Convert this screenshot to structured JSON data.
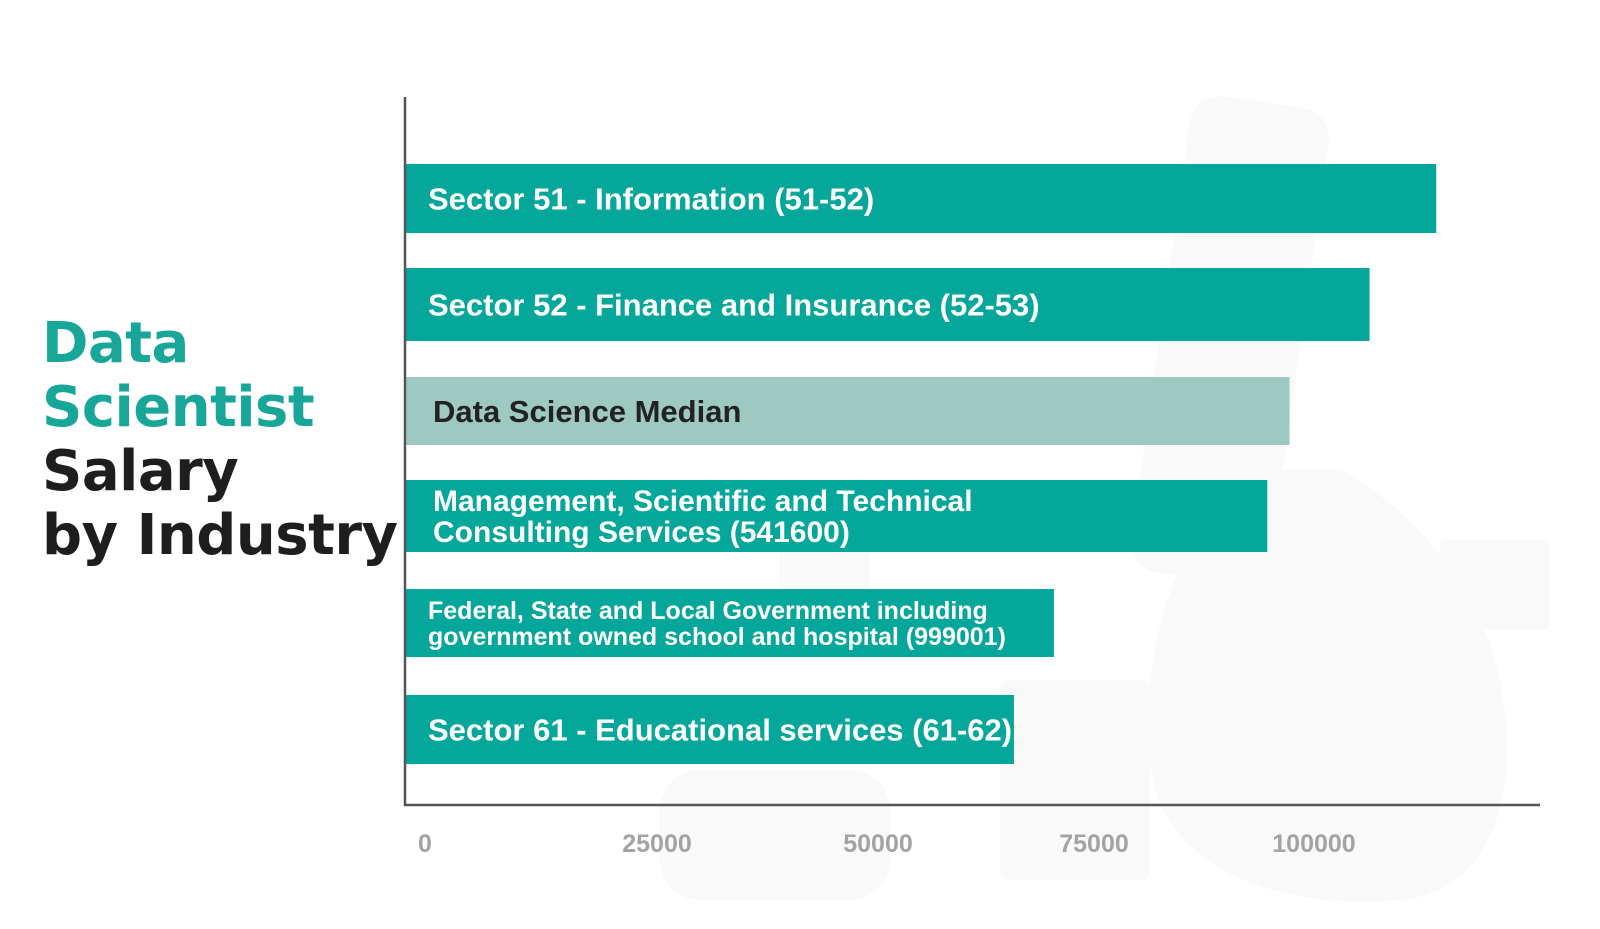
{
  "title": {
    "line1": "Data",
    "line2": "Scientist",
    "line3": "Salary",
    "line4": "by Industry"
  },
  "colors": {
    "bar": "#05a79a",
    "median_bar": "#9ec9c0",
    "title_accent": "#17a697",
    "title_dark": "#1e1e1e",
    "axis": "#555555",
    "tick_text": "#a3a3a3"
  },
  "chart_data": {
    "type": "bar",
    "orientation": "horizontal",
    "title": "Data Scientist Salary by Industry",
    "xlabel": "",
    "ylabel": "",
    "xlim": [
      0,
      127000
    ],
    "xticks": [
      "0",
      "25000",
      "50000",
      "75000",
      "100000"
    ],
    "grid": false,
    "categories": [
      [
        "Sector 51 - Information (51-52)"
      ],
      [
        "Sector 52 - Finance and Insurance (52-53)"
      ],
      [
        "Data Science Median"
      ],
      [
        "Management, Scientific and Technical",
        "Consulting Services (541600)"
      ],
      [
        "Federal, State and Local Government including",
        "government owned school and hospital (999001)"
      ],
      [
        "Sector 61 - Educational services (61-62)"
      ]
    ],
    "values": [
      116000,
      108500,
      99500,
      97000,
      73000,
      68500
    ],
    "highlight": [
      false,
      false,
      true,
      false,
      false,
      false
    ]
  }
}
